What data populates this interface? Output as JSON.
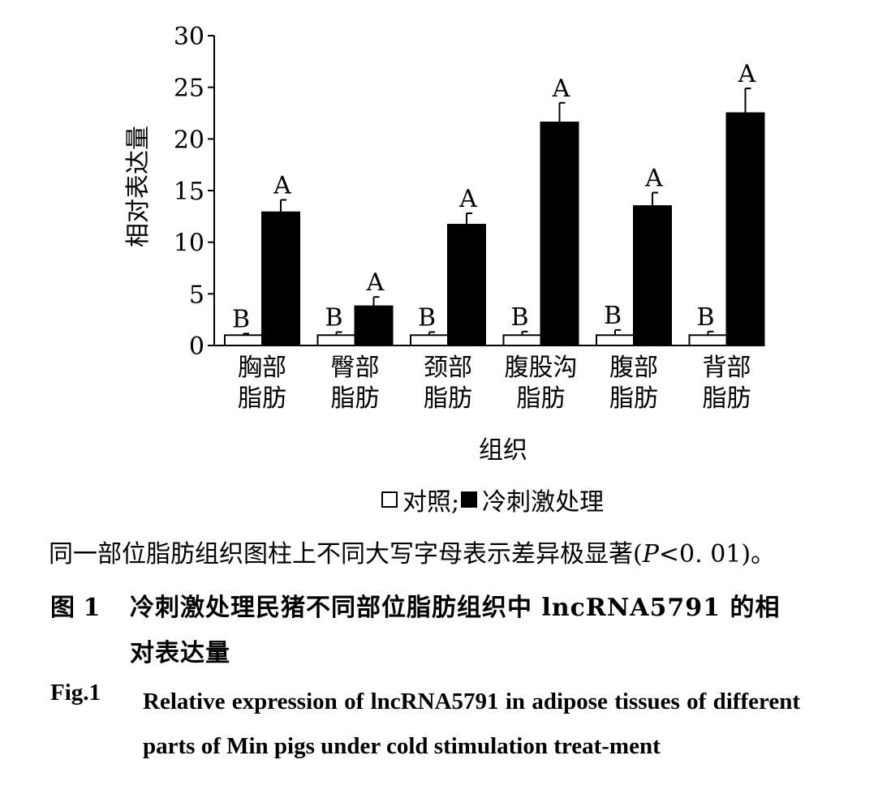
{
  "chart_data": {
    "type": "bar",
    "ylabel": "相对表达量",
    "xlabel": "组织",
    "ylim": [
      0,
      30
    ],
    "yticks": [
      0,
      5,
      10,
      15,
      20,
      25,
      30
    ],
    "categories": [
      [
        "胸部",
        "脂肪"
      ],
      [
        "臀部",
        "脂肪"
      ],
      [
        "颈部",
        "脂肪"
      ],
      [
        "腹股沟",
        "脂肪"
      ],
      [
        "腹部",
        "脂肪"
      ],
      [
        "背部",
        "脂肪"
      ]
    ],
    "series": [
      {
        "name": "对照",
        "color": "#ffffff",
        "values": [
          1.0,
          1.0,
          1.0,
          1.0,
          1.0,
          1.0
        ],
        "errors": [
          0.15,
          0.3,
          0.3,
          0.35,
          0.5,
          0.35
        ],
        "letters": [
          "B",
          "B",
          "B",
          "B",
          "B",
          "B"
        ]
      },
      {
        "name": "冷刺激处理",
        "color": "#000000",
        "values": [
          12.9,
          3.8,
          11.7,
          21.6,
          13.5,
          22.5
        ],
        "errors": [
          1.2,
          0.9,
          1.1,
          1.9,
          1.3,
          2.4
        ],
        "letters": [
          "A",
          "A",
          "A",
          "A",
          "A",
          "A"
        ]
      }
    ],
    "grid": false
  },
  "legend": {
    "control": "对照;",
    "treatment": "冷刺激处理"
  },
  "note": {
    "text_before": "同一部位脂肪组织图柱上不同大写字母表示差异极显著(",
    "p_symbol": "P",
    "text_after": "<0. 01)。"
  },
  "caption_zh": {
    "number": "图 1",
    "line1": "冷刺激处理民猪不同部位脂肪组织中 lncRNA5791 的相",
    "line2": "对表达量"
  },
  "caption_en": {
    "number": "Fig.1",
    "body": "Relative expression of lncRNA5791 in adipose tissues of different parts of Min pigs under cold stimulation treat-ment"
  }
}
